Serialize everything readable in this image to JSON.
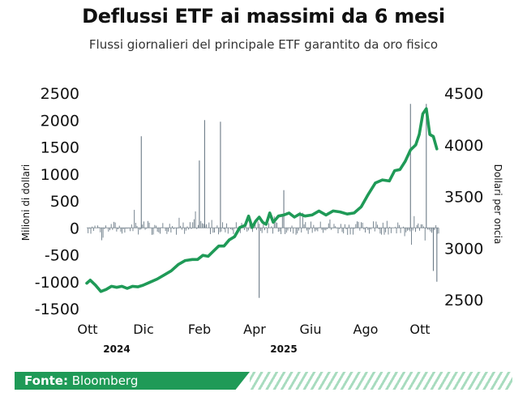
{
  "title": "Deflussi ETF ai massimi da 6 mesi",
  "subtitle": "Flussi giornalieri del principale ETF garantito da oro fisico",
  "footer": {
    "label": "Fonte:",
    "source": "Bloomberg"
  },
  "colors": {
    "accent": "#1f9a57",
    "bars": "#6b7a86",
    "stripes": "#a8dcbf"
  },
  "chart_data": {
    "type": "bar+line",
    "ylabel_left": "Milioni di dollari",
    "ylabel_right": "Dollari per oncia",
    "ylim_left": [
      -1500,
      2500
    ],
    "yticks_left": [
      "2500",
      "2000",
      "1500",
      "1000",
      "500",
      "0",
      "-500",
      "-1000",
      "-1500"
    ],
    "ylim_right": [
      2500,
      4500
    ],
    "yticks_right": [
      "4500",
      "4000",
      "3500",
      "3000",
      "2500"
    ],
    "xticks": [
      "Ott",
      "Dic",
      "Feb",
      "Apr",
      "Giu",
      "Ago",
      "Ott"
    ],
    "year_labels": [
      "2024",
      "2025"
    ],
    "flow_spikes": [
      {
        "t": 0.155,
        "v": 1700
      },
      {
        "t": 0.32,
        "v": 1250
      },
      {
        "t": 0.335,
        "v": 2000
      },
      {
        "t": 0.38,
        "v": 1970
      },
      {
        "t": 0.49,
        "v": -1300
      },
      {
        "t": 0.56,
        "v": 700
      },
      {
        "t": 0.92,
        "v": 2300
      },
      {
        "t": 0.965,
        "v": 2300
      },
      {
        "t": 0.985,
        "v": -800
      },
      {
        "t": 0.995,
        "v": -1000
      }
    ],
    "gold_price": [
      [
        0.0,
        2660
      ],
      [
        0.01,
        2690
      ],
      [
        0.025,
        2640
      ],
      [
        0.04,
        2580
      ],
      [
        0.055,
        2600
      ],
      [
        0.07,
        2630
      ],
      [
        0.085,
        2620
      ],
      [
        0.1,
        2630
      ],
      [
        0.115,
        2610
      ],
      [
        0.13,
        2630
      ],
      [
        0.145,
        2625
      ],
      [
        0.16,
        2640
      ],
      [
        0.18,
        2670
      ],
      [
        0.2,
        2700
      ],
      [
        0.22,
        2740
      ],
      [
        0.24,
        2780
      ],
      [
        0.26,
        2840
      ],
      [
        0.28,
        2880
      ],
      [
        0.3,
        2890
      ],
      [
        0.315,
        2890
      ],
      [
        0.33,
        2930
      ],
      [
        0.345,
        2920
      ],
      [
        0.36,
        2970
      ],
      [
        0.375,
        3020
      ],
      [
        0.39,
        3020
      ],
      [
        0.405,
        3080
      ],
      [
        0.42,
        3110
      ],
      [
        0.435,
        3200
      ],
      [
        0.45,
        3220
      ],
      [
        0.46,
        3310
      ],
      [
        0.47,
        3200
      ],
      [
        0.48,
        3260
      ],
      [
        0.49,
        3300
      ],
      [
        0.5,
        3250
      ],
      [
        0.51,
        3230
      ],
      [
        0.52,
        3340
      ],
      [
        0.53,
        3250
      ],
      [
        0.545,
        3310
      ],
      [
        0.56,
        3320
      ],
      [
        0.575,
        3340
      ],
      [
        0.59,
        3300
      ],
      [
        0.605,
        3330
      ],
      [
        0.62,
        3310
      ],
      [
        0.64,
        3320
      ],
      [
        0.66,
        3360
      ],
      [
        0.68,
        3320
      ],
      [
        0.7,
        3360
      ],
      [
        0.72,
        3350
      ],
      [
        0.74,
        3330
      ],
      [
        0.76,
        3340
      ],
      [
        0.78,
        3400
      ],
      [
        0.8,
        3520
      ],
      [
        0.82,
        3630
      ],
      [
        0.84,
        3660
      ],
      [
        0.86,
        3650
      ],
      [
        0.875,
        3750
      ],
      [
        0.89,
        3760
      ],
      [
        0.905,
        3840
      ],
      [
        0.92,
        3950
      ],
      [
        0.935,
        4000
      ],
      [
        0.945,
        4100
      ],
      [
        0.955,
        4300
      ],
      [
        0.965,
        4350
      ],
      [
        0.975,
        4100
      ],
      [
        0.985,
        4080
      ],
      [
        0.995,
        3960
      ]
    ]
  }
}
